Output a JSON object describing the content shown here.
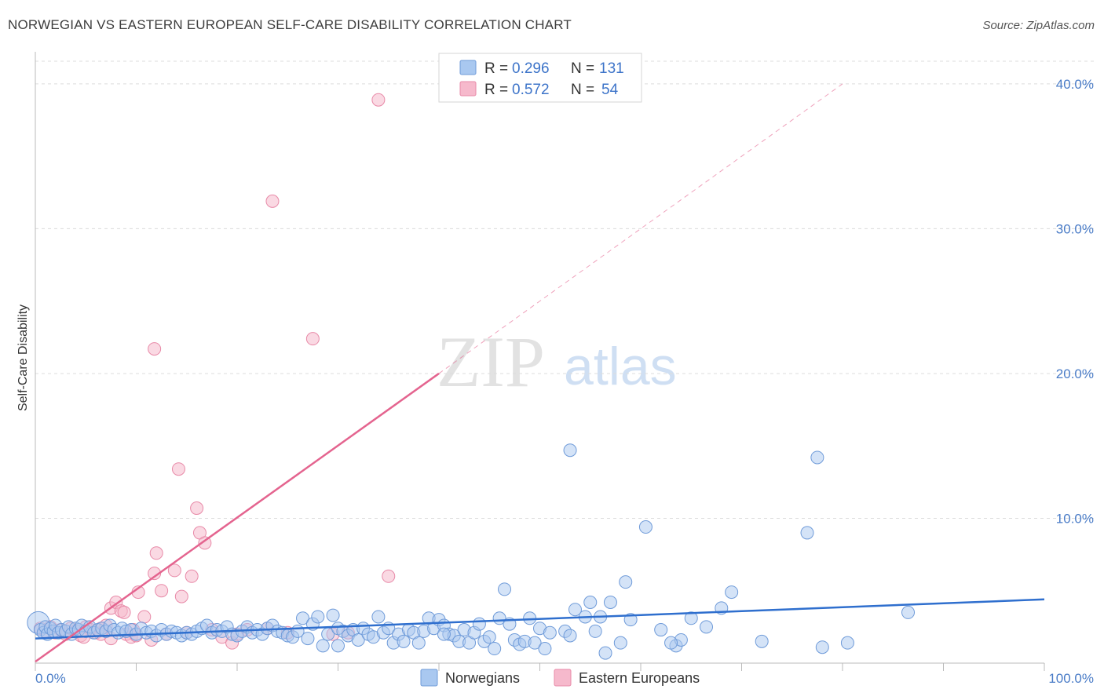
{
  "title": "NORWEGIAN VS EASTERN EUROPEAN SELF-CARE DISABILITY CORRELATION CHART",
  "source": "Source: ZipAtlas.com",
  "watermark": {
    "zip": "ZIP",
    "atlas": "atlas"
  },
  "colors": {
    "blue_fill": "#a9c8f0",
    "blue_stroke": "#6f9bd9",
    "blue_line": "#2f6fce",
    "pink_fill": "#f6b9cc",
    "pink_stroke": "#e88aa8",
    "pink_line": "#e4648f",
    "axis_text": "#4a7cc7",
    "grid": "#dcdcdc"
  },
  "legend": {
    "blue": {
      "r_label": "R = ",
      "r_value": "0.296",
      "n_label": "N = ",
      "n_value": "131"
    },
    "pink": {
      "r_label": "R = ",
      "r_value": "0.572",
      "n_label": "N = ",
      "n_value": "54"
    }
  },
  "bottom_legend": {
    "blue": "Norwegians",
    "pink": "Eastern Europeans"
  },
  "chart_data": {
    "type": "scatter",
    "title": "NORWEGIAN VS EASTERN EUROPEAN SELF-CARE DISABILITY CORRELATION CHART",
    "xlabel": "",
    "ylabel": "Self-Care Disability",
    "xlim": [
      0,
      100
    ],
    "ylim": [
      0,
      42
    ],
    "x_tick_labels": [
      "0.0%",
      "100.0%"
    ],
    "y_ticks": [
      10,
      20,
      30,
      40
    ],
    "y_tick_labels": [
      "10.0%",
      "20.0%",
      "30.0%",
      "40.0%"
    ],
    "grid": true,
    "series": [
      {
        "name": "Norwegians",
        "color": "#a9c8f0",
        "R": 0.296,
        "N": 131,
        "trend": {
          "x": [
            0,
            100
          ],
          "y": [
            1.7,
            4.4
          ]
        },
        "points": [
          [
            0.3,
            2.8
          ],
          [
            0.5,
            2.3
          ],
          [
            0.8,
            2.1
          ],
          [
            1.0,
            2.5
          ],
          [
            1.2,
            2.0
          ],
          [
            1.5,
            2.4
          ],
          [
            1.8,
            2.2
          ],
          [
            2.0,
            2.6
          ],
          [
            2.3,
            2.1
          ],
          [
            2.6,
            2.3
          ],
          [
            3.0,
            2.2
          ],
          [
            3.3,
            2.5
          ],
          [
            3.6,
            2.0
          ],
          [
            4.0,
            2.4
          ],
          [
            4.3,
            2.3
          ],
          [
            4.6,
            2.6
          ],
          [
            5.0,
            2.2
          ],
          [
            5.4,
            2.5
          ],
          [
            5.8,
            2.1
          ],
          [
            6.2,
            2.3
          ],
          [
            6.6,
            2.4
          ],
          [
            7.0,
            2.2
          ],
          [
            7.4,
            2.6
          ],
          [
            7.8,
            2.3
          ],
          [
            8.2,
            2.1
          ],
          [
            8.6,
            2.4
          ],
          [
            9.0,
            2.2
          ],
          [
            9.5,
            2.3
          ],
          [
            10.0,
            2.0
          ],
          [
            10.5,
            2.4
          ],
          [
            11.0,
            2.1
          ],
          [
            11.5,
            2.2
          ],
          [
            12.0,
            1.9
          ],
          [
            12.5,
            2.3
          ],
          [
            13.0,
            2.0
          ],
          [
            13.5,
            2.2
          ],
          [
            14.0,
            2.1
          ],
          [
            14.5,
            1.9
          ],
          [
            15.0,
            2.1
          ],
          [
            15.5,
            2.0
          ],
          [
            16.0,
            2.2
          ],
          [
            16.5,
            2.4
          ],
          [
            17.0,
            2.6
          ],
          [
            17.5,
            2.1
          ],
          [
            18.0,
            2.3
          ],
          [
            18.5,
            2.2
          ],
          [
            19.0,
            2.5
          ],
          [
            19.5,
            2.0
          ],
          [
            20.0,
            1.9
          ],
          [
            20.5,
            2.2
          ],
          [
            21.0,
            2.5
          ],
          [
            21.5,
            2.1
          ],
          [
            22.0,
            2.3
          ],
          [
            22.5,
            2.0
          ],
          [
            23.0,
            2.4
          ],
          [
            23.5,
            2.6
          ],
          [
            24.0,
            2.2
          ],
          [
            24.5,
            2.1
          ],
          [
            25.0,
            1.9
          ],
          [
            25.5,
            1.8
          ],
          [
            26.0,
            2.2
          ],
          [
            26.5,
            3.1
          ],
          [
            27.0,
            1.7
          ],
          [
            27.5,
            2.7
          ],
          [
            28.0,
            3.2
          ],
          [
            28.5,
            1.2
          ],
          [
            29.0,
            2.0
          ],
          [
            29.5,
            3.3
          ],
          [
            30.0,
            2.4
          ],
          [
            30.5,
            2.2
          ],
          [
            31.0,
            1.9
          ],
          [
            31.5,
            2.3
          ],
          [
            32.0,
            1.6
          ],
          [
            32.5,
            2.4
          ],
          [
            33.0,
            2.0
          ],
          [
            33.5,
            1.8
          ],
          [
            34.0,
            3.2
          ],
          [
            34.5,
            2.1
          ],
          [
            35.0,
            2.4
          ],
          [
            35.5,
            1.4
          ],
          [
            36.0,
            2.0
          ],
          [
            36.5,
            1.5
          ],
          [
            37.0,
            2.3
          ],
          [
            37.5,
            2.1
          ],
          [
            38.0,
            1.4
          ],
          [
            38.5,
            2.2
          ],
          [
            39.0,
            3.1
          ],
          [
            39.5,
            2.4
          ],
          [
            40.0,
            3.0
          ],
          [
            40.5,
            2.6
          ],
          [
            41.0,
            2.0
          ],
          [
            41.5,
            1.9
          ],
          [
            42.0,
            1.5
          ],
          [
            42.5,
            2.3
          ],
          [
            43.0,
            1.4
          ],
          [
            43.5,
            2.1
          ],
          [
            44.0,
            2.7
          ],
          [
            44.5,
            1.5
          ],
          [
            45.0,
            1.8
          ],
          [
            45.5,
            1.0
          ],
          [
            46.0,
            3.1
          ],
          [
            46.5,
            5.1
          ],
          [
            47.0,
            2.7
          ],
          [
            47.5,
            1.6
          ],
          [
            48.0,
            1.3
          ],
          [
            48.5,
            1.5
          ],
          [
            49.0,
            3.1
          ],
          [
            49.5,
            1.4
          ],
          [
            50.0,
            2.4
          ],
          [
            50.5,
            1.0
          ],
          [
            51.0,
            2.1
          ],
          [
            52.5,
            2.2
          ],
          [
            53.0,
            1.9
          ],
          [
            53.5,
            3.7
          ],
          [
            54.5,
            3.2
          ],
          [
            55.0,
            4.2
          ],
          [
            55.5,
            2.2
          ],
          [
            56.0,
            3.2
          ],
          [
            56.5,
            0.7
          ],
          [
            57.0,
            4.2
          ],
          [
            58.0,
            1.4
          ],
          [
            58.5,
            5.6
          ],
          [
            59.0,
            3.0
          ],
          [
            60.5,
            9.4
          ],
          [
            62.0,
            2.3
          ],
          [
            63.5,
            1.2
          ],
          [
            64.0,
            1.6
          ],
          [
            65.0,
            3.1
          ],
          [
            66.5,
            2.5
          ],
          [
            68.0,
            3.8
          ],
          [
            69.0,
            4.9
          ],
          [
            72.0,
            1.5
          ],
          [
            76.5,
            9.0
          ],
          [
            77.5,
            14.2
          ],
          [
            78.0,
            1.1
          ],
          [
            80.5,
            1.4
          ],
          [
            86.5,
            3.5
          ],
          [
            53.0,
            14.7
          ],
          [
            63.0,
            1.4
          ],
          [
            40.5,
            2.0
          ],
          [
            30.0,
            1.2
          ]
        ]
      },
      {
        "name": "Eastern Europeans",
        "color": "#f6b9cc",
        "R": 0.572,
        "N": 54,
        "trend": {
          "x": [
            0,
            40
          ],
          "y": [
            0.1,
            20.0
          ]
        },
        "trend_extended": {
          "x": [
            40,
            80
          ],
          "y": [
            20.0,
            40.0
          ]
        },
        "points": [
          [
            0.5,
            2.4
          ],
          [
            1.0,
            2.2
          ],
          [
            1.5,
            2.5
          ],
          [
            2.0,
            2.1
          ],
          [
            2.5,
            2.3
          ],
          [
            3.0,
            2.0
          ],
          [
            3.5,
            2.4
          ],
          [
            4.0,
            2.2
          ],
          [
            4.5,
            1.9
          ],
          [
            5.0,
            2.5
          ],
          [
            5.5,
            2.3
          ],
          [
            6.0,
            2.1
          ],
          [
            6.5,
            2.4
          ],
          [
            7.0,
            2.6
          ],
          [
            7.5,
            3.8
          ],
          [
            8.0,
            4.2
          ],
          [
            8.5,
            3.6
          ],
          [
            8.8,
            3.5
          ],
          [
            9.0,
            2.0
          ],
          [
            9.5,
            1.8
          ],
          [
            10.0,
            1.9
          ],
          [
            10.2,
            4.9
          ],
          [
            10.8,
            3.2
          ],
          [
            11.5,
            1.6
          ],
          [
            11.8,
            6.2
          ],
          [
            12.0,
            7.6
          ],
          [
            12.5,
            5.0
          ],
          [
            13.0,
            2.0
          ],
          [
            13.8,
            6.4
          ],
          [
            14.2,
            13.4
          ],
          [
            14.5,
            4.6
          ],
          [
            15.0,
            2.1
          ],
          [
            15.5,
            6.0
          ],
          [
            16.0,
            10.7
          ],
          [
            16.3,
            9.0
          ],
          [
            16.8,
            8.3
          ],
          [
            17.5,
            2.3
          ],
          [
            18.5,
            1.8
          ],
          [
            19.5,
            1.4
          ],
          [
            20.0,
            2.0
          ],
          [
            21.0,
            2.3
          ],
          [
            23.5,
            31.9
          ],
          [
            23.0,
            2.4
          ],
          [
            25.0,
            2.1
          ],
          [
            27.5,
            22.4
          ],
          [
            29.5,
            2.0
          ],
          [
            31.0,
            2.1
          ],
          [
            34.0,
            38.9
          ],
          [
            35.0,
            6.0
          ],
          [
            11.8,
            21.7
          ],
          [
            7.5,
            1.7
          ],
          [
            6.5,
            2.0
          ],
          [
            9.7,
            2.3
          ],
          [
            4.8,
            1.8
          ]
        ]
      }
    ]
  }
}
